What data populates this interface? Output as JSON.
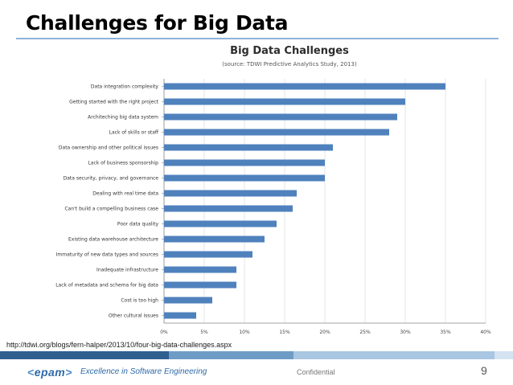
{
  "slide": {
    "title": "Challenges for Big Data",
    "source_link": "http://tdwi.org/blogs/fern-halper/2013/10/four-big-data-challenges.aspx"
  },
  "footer": {
    "logo_text": "epam",
    "tagline": "Excellence in Software Engineering",
    "confidential": "Confidential",
    "page_number": "9",
    "bar_colors": [
      "#2f5f8f",
      "#6e9cc5",
      "#a9c6e2",
      "#d3e3f1"
    ]
  },
  "chart_data": {
    "type": "bar",
    "orientation": "horizontal",
    "title": "Big Data Challenges",
    "subtitle": "(source: TDWI Predictive Analytics Study, 2013)",
    "categories": [
      "Data integration complexity",
      "Getting started with the right project",
      "Architeching big data system",
      "Lack of skills or staff",
      "Data ownership and other political issues",
      "Lack of business sponsorship",
      "Data security, privacy, and governance",
      "Dealing with real time data",
      "Can't build a compelling business case",
      "Poor data quality",
      "Existing data warehouse architecture",
      "Immaturity of new data types and sources",
      "Inadequate infrastructure",
      "Lack of metadata and schema for big data",
      "Cost is too high",
      "Other cultural issues"
    ],
    "values": [
      35,
      30,
      29,
      28,
      21,
      20,
      20,
      16.5,
      16,
      14,
      12.5,
      11,
      9,
      9,
      6,
      4
    ],
    "xticks": [
      "0%",
      "5%",
      "10%",
      "15%",
      "20%",
      "25%",
      "30%",
      "35%",
      "40%"
    ],
    "xlim": [
      0,
      40
    ],
    "bar_color": "#4f81bd",
    "grid": "vertical"
  }
}
